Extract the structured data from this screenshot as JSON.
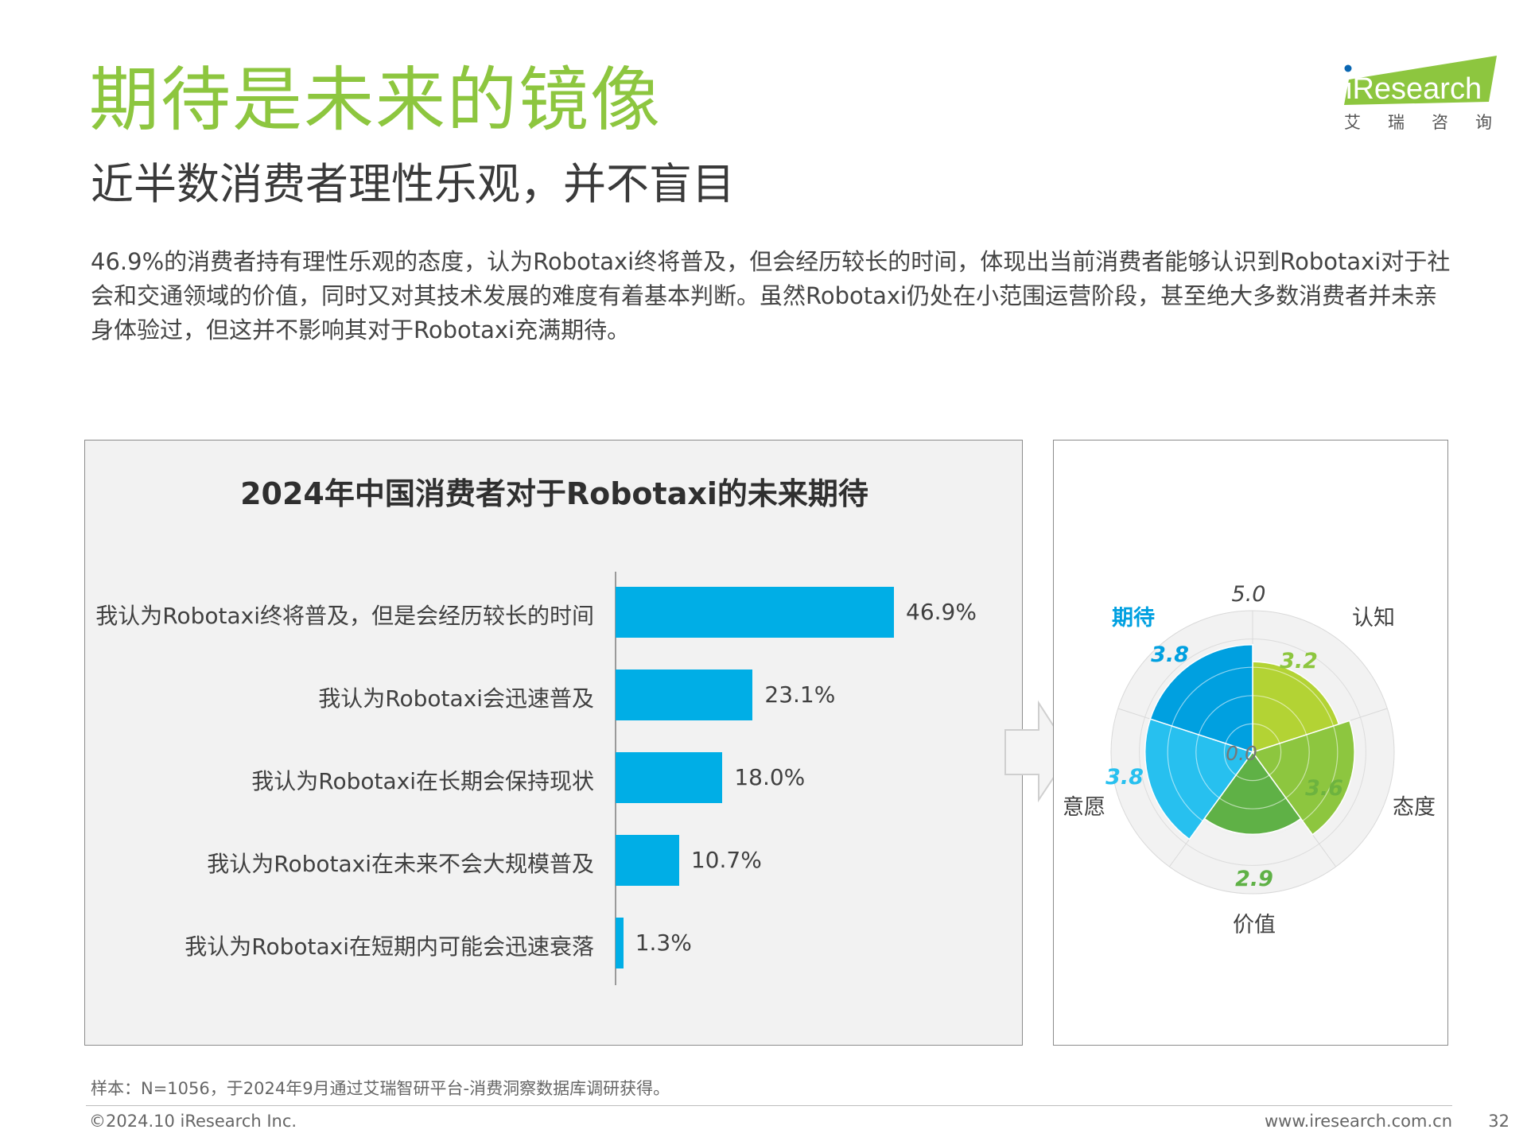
{
  "header": {
    "title": "期待是未来的镜像",
    "subtitle": "近半数消费者理性乐观，并不盲目",
    "body": "46.9%的消费者持有理性乐观的态度，认为Robotaxi终将普及，但会经历较长的时间，体现出当前消费者能够认识到Robotaxi对于社会和交通领域的价值，同时又对其技术发展的难度有着基本判断。虽然Robotaxi仍处在小范围运营阶段，甚至绝大多数消费者并未亲身体验过，但这并不影响其对于Robotaxi充满期待。"
  },
  "logo": {
    "text": "iResearch",
    "name": "艾瑞咨询"
  },
  "colors": {
    "title_green": "#8dc63f",
    "bar_blue": "#00aee6"
  },
  "chart_data": [
    {
      "type": "bar",
      "orientation": "horizontal",
      "title": "2024年中国消费者对于Robotaxi的未来期待",
      "categories": [
        "我认为Robotaxi终将普及，但是会经历较长的时间",
        "我认为Robotaxi会迅速普及",
        "我认为Robotaxi在长期会保持现状",
        "我认为Robotaxi在未来不会大规模普及",
        "我认为Robotaxi在短期内可能会迅速衰落"
      ],
      "values": [
        46.9,
        23.1,
        18.0,
        10.7,
        1.3
      ],
      "labels": [
        "46.9%",
        "23.1%",
        "18.0%",
        "10.7%",
        "1.3%"
      ],
      "xlim": [
        0,
        50
      ]
    },
    {
      "type": "polar_area",
      "rlim": [
        0,
        5
      ],
      "r_max_label": "5.0",
      "r_min_label": "0.0",
      "categories": [
        "认知",
        "态度",
        "价值",
        "意愿",
        "期待"
      ],
      "values": [
        3.2,
        3.6,
        2.9,
        3.8,
        3.8
      ],
      "value_labels": [
        "3.2",
        "3.6",
        "2.9",
        "3.8",
        "3.8"
      ],
      "colors": [
        "#b3d334",
        "#8dc63f",
        "#5fb146",
        "#27c0ef",
        "#00a0e0"
      ],
      "label_colors": [
        "#8dc63f",
        "#6db33f",
        "#5fb146",
        "#27c0ef",
        "#00a0e0"
      ],
      "highlight": "期待"
    }
  ],
  "footer": {
    "note": "样本：N=1056，于2024年9月通过艾瑞智研平台-消费洞察数据库调研获得。",
    "copyright": "©2024.10 iResearch Inc.",
    "website": "www.iresearch.com.cn",
    "page": "32"
  }
}
